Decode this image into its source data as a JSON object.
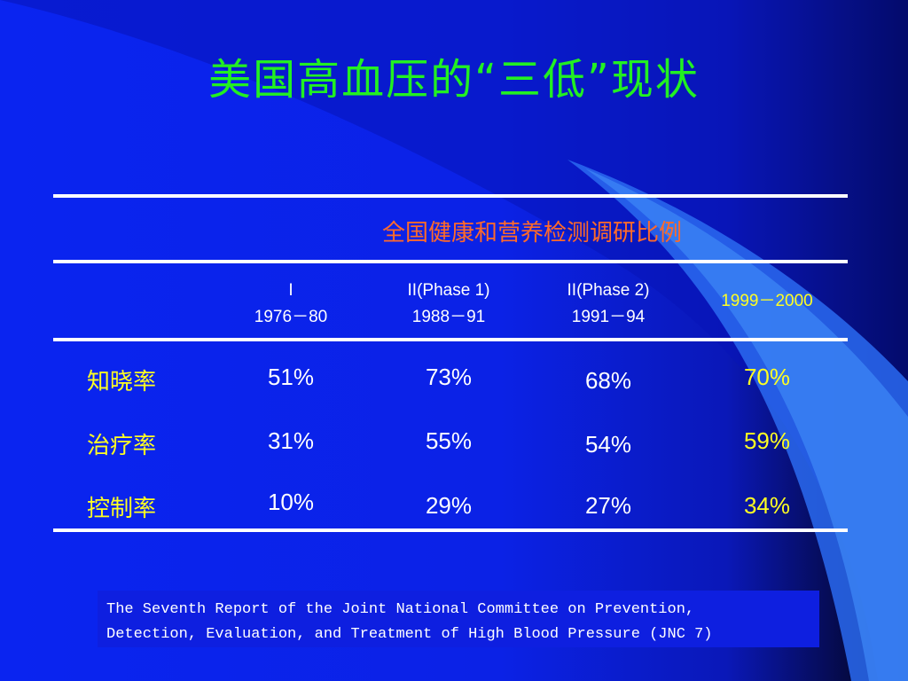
{
  "slide": {
    "title": "美国高血压的“三低”现状",
    "subtitle": "全国健康和营养检测调研比例",
    "columns": [
      {
        "line1": "I",
        "line2": "1976－80"
      },
      {
        "line1": "II(Phase 1)",
        "line2": "1988－91"
      },
      {
        "line1": "II(Phase 2)",
        "line2": "1991－94"
      },
      {
        "line1": "1999－2000",
        "line2": ""
      }
    ],
    "rows": [
      {
        "label": "知晓率",
        "values": [
          "51%",
          "73%",
          "68%",
          "70%"
        ]
      },
      {
        "label": "治疗率",
        "values": [
          "31%",
          "55%",
          "54%",
          "59%"
        ]
      },
      {
        "label": "控制率",
        "values": [
          "10%",
          "29%",
          "27%",
          "34%"
        ]
      }
    ],
    "reference": {
      "line1": "The Seventh Report of the Joint National Committee on Prevention,",
      "line2": "Detection, Evaluation, and Treatment of High Blood Pressure (JNC 7)"
    },
    "colors": {
      "title": "#22f022",
      "subtitle": "#ff6a2a",
      "highlight": "#ffff22",
      "text": "#ffffff",
      "background": "#0a24f0"
    }
  }
}
